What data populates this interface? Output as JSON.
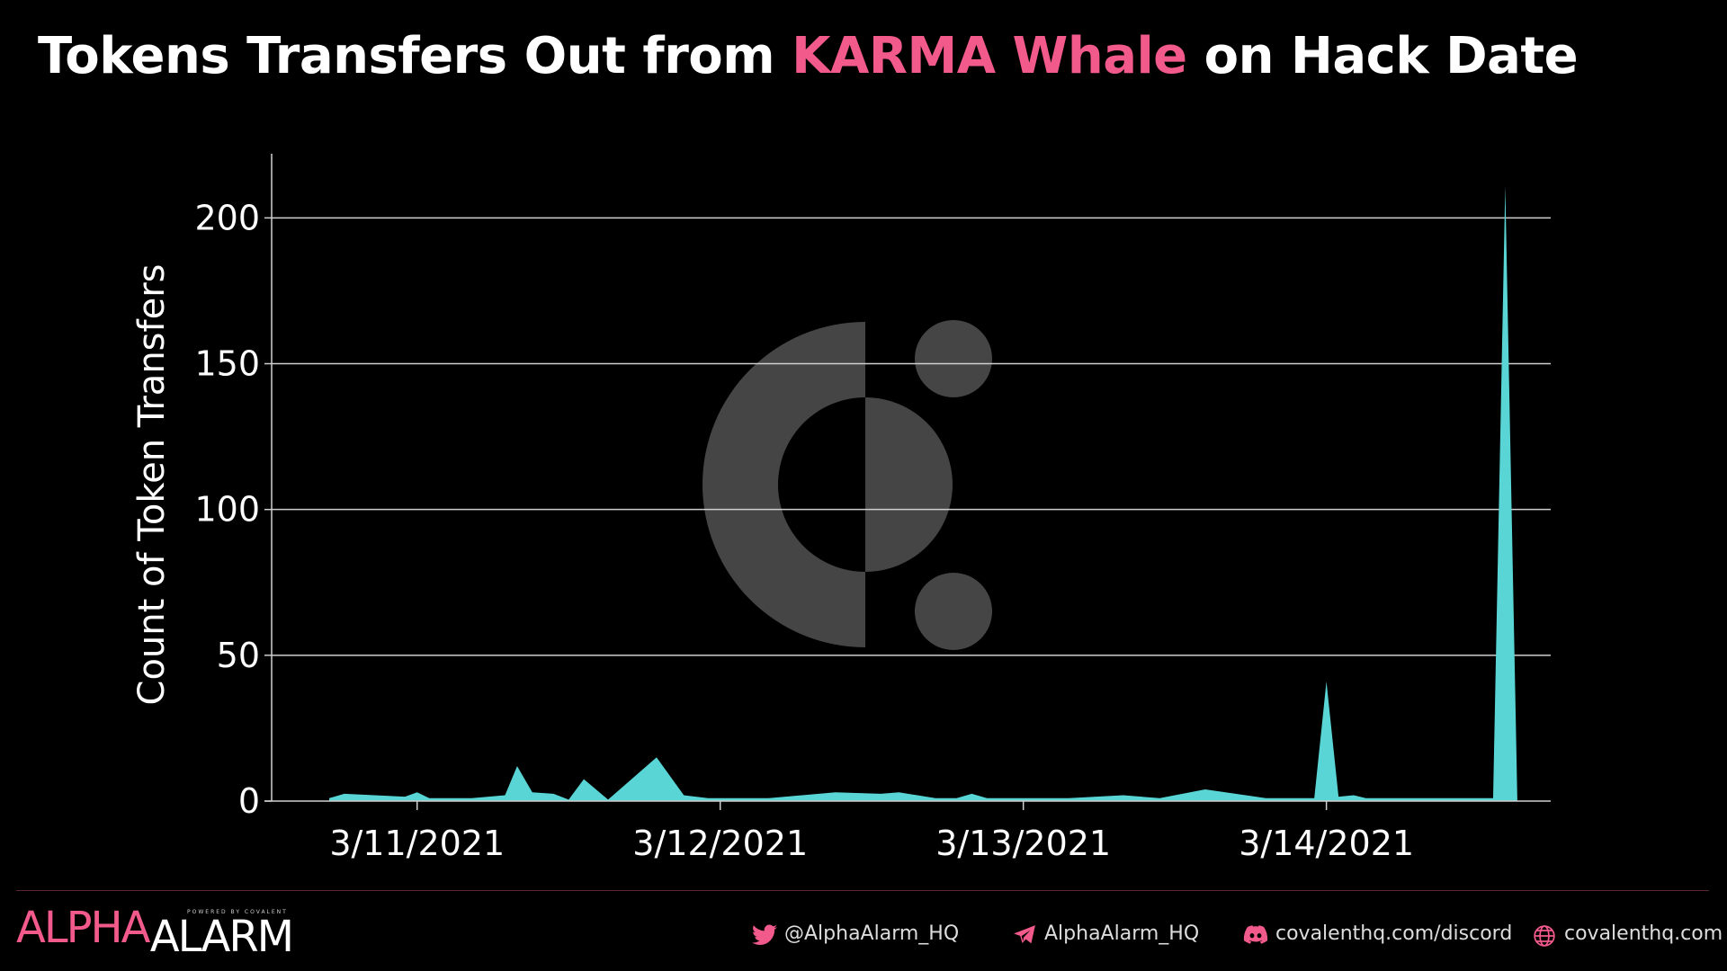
{
  "chart_data": {
    "type": "area",
    "title_start": "Tokens Transfers Out from ",
    "title_highlight": "KARMA Whale",
    "title_end": " on Hack Date",
    "y_label": "Count of Token Transfers",
    "color": "#5ad5d5",
    "x": [
      10.71,
      10.76,
      10.96,
      11.0,
      11.04,
      11.18,
      11.29,
      11.33,
      11.38,
      11.45,
      11.5,
      11.55,
      11.63,
      11.79,
      11.88,
      11.96,
      12.16,
      12.38,
      12.53,
      12.59,
      12.71,
      12.78,
      12.83,
      12.88,
      13.15,
      13.33,
      13.45,
      13.6,
      13.8,
      13.96,
      14.0,
      14.04,
      14.09,
      14.13,
      14.55,
      14.59,
      14.63
    ],
    "values": [
      1,
      2.5,
      1.5,
      3,
      1,
      1,
      2,
      12,
      3,
      2.5,
      0.5,
      7.5,
      0.5,
      15,
      2,
      1,
      1,
      3,
      2.5,
      3,
      1,
      1,
      2.5,
      1,
      1,
      2,
      1,
      4,
      1,
      1,
      41,
      1.5,
      2,
      1,
      1,
      211,
      0
    ],
    "xlim": [
      10.52,
      14.74
    ],
    "xticks": [
      {
        "value": 11,
        "label": "3/11/2021"
      },
      {
        "value": 12,
        "label": "3/12/2021"
      },
      {
        "value": 13,
        "label": "3/13/2021"
      },
      {
        "value": 14,
        "label": "3/14/2021"
      }
    ],
    "ylim": [
      0,
      222
    ],
    "yticks": [
      0,
      50,
      100,
      150,
      200
    ],
    "grid": true
  },
  "footer": {
    "brand_1": "ALPHA",
    "brand_2": "ALARM",
    "powered": "POWERED BY COVALENT",
    "twitter": "@AlphaAlarm_HQ",
    "telegram": "AlphaAlarm_HQ",
    "discord": "covalenthq.com/discord",
    "web": "covalenthq.com"
  }
}
